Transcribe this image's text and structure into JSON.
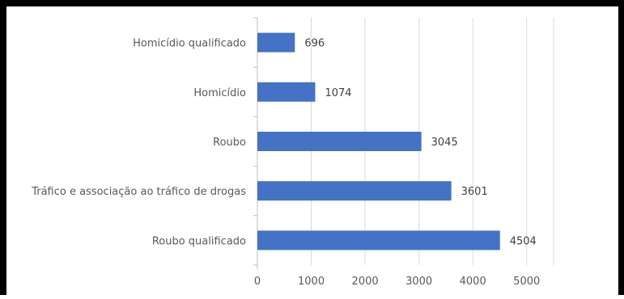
{
  "chart_data": {
    "type": "bar",
    "orientation": "horizontal",
    "title": "",
    "xlabel": "",
    "ylabel": "",
    "categories": [
      "Homicídio qualificado",
      "Homicídio",
      "Roubo",
      "Tráfico e associação ao tráfico de drogas",
      "Roubo qualificado"
    ],
    "values": [
      696,
      1074,
      3045,
      3601,
      4504
    ],
    "xlim": [
      0,
      5500
    ],
    "xticks": [
      0,
      1000,
      2000,
      3000,
      4000,
      5000
    ],
    "xtick_labels": [
      "0",
      "1000",
      "2000",
      "3000",
      "4000",
      "5000"
    ],
    "data_labels": [
      "696",
      "1074",
      "3045",
      "3601",
      "4504"
    ],
    "grid": "vertical",
    "legend": "none",
    "bar_color": "#4472C4"
  }
}
